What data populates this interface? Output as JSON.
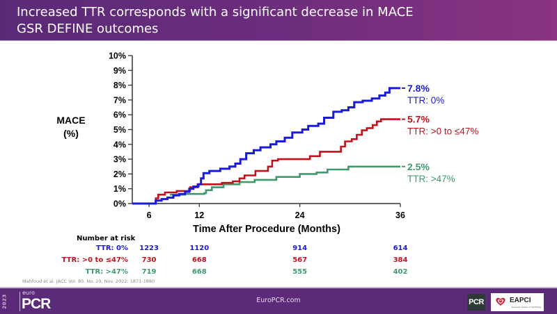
{
  "slide": {
    "title_line1": "Increased TTR corresponds with a significant decrease in MACE",
    "title_line2": "GSR DEFINE outcomes",
    "citation": "Mahfoud et al. JACC Vol. 80, No. 20, Nov. 2022: 1871-1880",
    "footer_site": "EuroPCR.com",
    "logo_year": "2023",
    "logo_euro": "euro",
    "logo_pcr": "PCR",
    "badge_pcr": "PCR",
    "badge_eapci": "EAPCI",
    "badge_eapci_sub": "European Society of Cardiology"
  },
  "colors": {
    "header_start": "#5a2a78",
    "header_end": "#8a3482",
    "blue": "#1a1adb",
    "red": "#c0121c",
    "green": "#3e9a6a"
  },
  "chart_data": {
    "type": "line",
    "subtype": "kaplan-meier-step",
    "title": "",
    "xlabel": "Time After Procedure (Months)",
    "ylabel_line1": "MACE",
    "ylabel_line2": "(%)",
    "xlim": [
      4,
      36
    ],
    "ylim": [
      0,
      10
    ],
    "x_ticks": [
      6,
      12,
      24,
      36
    ],
    "x_tick_labels": [
      "6",
      "12",
      "24",
      "36"
    ],
    "y_ticks": [
      0,
      1,
      2,
      3,
      4,
      5,
      6,
      7,
      8,
      9,
      10
    ],
    "y_tick_labels": [
      "0%",
      "1%",
      "2%",
      "3%",
      "4%",
      "5%",
      "6%",
      "7%",
      "8%",
      "9%",
      "10%"
    ],
    "grid": false,
    "legend_placement": "right-end-labels",
    "series": [
      {
        "name": "TTR: 0%",
        "color_key": "blue",
        "end_label": "7.8%",
        "final_value": 7.8,
        "points": [
          [
            4,
            0
          ],
          [
            6.6,
            0
          ],
          [
            6.8,
            0.2
          ],
          [
            7.5,
            0.3
          ],
          [
            8.2,
            0.4
          ],
          [
            8.9,
            0.55
          ],
          [
            9.6,
            0.65
          ],
          [
            10.3,
            0.8
          ],
          [
            10.8,
            1.0
          ],
          [
            11.3,
            1.15
          ],
          [
            11.9,
            1.3
          ],
          [
            12.2,
            1.7
          ],
          [
            12.5,
            2.05
          ],
          [
            13.2,
            2.2
          ],
          [
            14.5,
            2.35
          ],
          [
            15.6,
            2.5
          ],
          [
            16.3,
            2.7
          ],
          [
            16.9,
            3.0
          ],
          [
            17.6,
            3.4
          ],
          [
            18.5,
            3.6
          ],
          [
            19.3,
            3.8
          ],
          [
            20.5,
            4.0
          ],
          [
            21.2,
            4.2
          ],
          [
            22.2,
            4.45
          ],
          [
            23.1,
            4.8
          ],
          [
            24.3,
            5.0
          ],
          [
            25.0,
            5.25
          ],
          [
            26.2,
            5.4
          ],
          [
            26.9,
            5.8
          ],
          [
            28.0,
            6.2
          ],
          [
            29.0,
            6.3
          ],
          [
            29.8,
            6.5
          ],
          [
            30.5,
            6.85
          ],
          [
            31.5,
            6.95
          ],
          [
            32.6,
            7.1
          ],
          [
            33.5,
            7.3
          ],
          [
            34.2,
            7.5
          ],
          [
            34.7,
            7.8
          ],
          [
            36,
            7.8
          ]
        ]
      },
      {
        "name": "TTR: >0 to ≤47%",
        "color_key": "red",
        "end_label": "5.7%",
        "final_value": 5.7,
        "points": [
          [
            6.6,
            0
          ],
          [
            6.8,
            0.35
          ],
          [
            7.1,
            0.6
          ],
          [
            7.9,
            0.75
          ],
          [
            9.3,
            0.85
          ],
          [
            10.9,
            1.1
          ],
          [
            11.8,
            1.3
          ],
          [
            14.2,
            1.3
          ],
          [
            14.7,
            1.4
          ],
          [
            16.0,
            1.5
          ],
          [
            16.8,
            1.7
          ],
          [
            17.4,
            1.9
          ],
          [
            18.7,
            2.2
          ],
          [
            20.2,
            2.5
          ],
          [
            20.7,
            2.9
          ],
          [
            21.4,
            3.0
          ],
          [
            25.2,
            3.2
          ],
          [
            26.4,
            3.5
          ],
          [
            28.9,
            3.85
          ],
          [
            29.4,
            4.2
          ],
          [
            30.2,
            4.35
          ],
          [
            30.8,
            4.65
          ],
          [
            31.4,
            4.95
          ],
          [
            32.0,
            5.1
          ],
          [
            32.7,
            5.3
          ],
          [
            33.2,
            5.55
          ],
          [
            33.7,
            5.7
          ],
          [
            36,
            5.7
          ]
        ]
      },
      {
        "name": "TTR: >47%",
        "color_key": "green",
        "end_label": "2.5%",
        "final_value": 2.5,
        "points": [
          [
            8.5,
            0.6
          ],
          [
            10.3,
            0.65
          ],
          [
            12.6,
            0.7
          ],
          [
            12.8,
            0.9
          ],
          [
            13.5,
            1.1
          ],
          [
            14.9,
            1.3
          ],
          [
            16.8,
            1.45
          ],
          [
            18.6,
            1.6
          ],
          [
            21.2,
            1.8
          ],
          [
            24.0,
            2.0
          ],
          [
            26.0,
            2.1
          ],
          [
            27.3,
            2.3
          ],
          [
            29.8,
            2.5
          ],
          [
            36,
            2.5
          ]
        ]
      }
    ],
    "number_at_risk": {
      "title": "Number at risk",
      "timepoints": [
        6,
        12,
        24,
        36
      ],
      "rows": [
        {
          "label": "TTR: 0%",
          "color_key": "blue",
          "values": [
            "1223",
            "1120",
            "914",
            "614"
          ]
        },
        {
          "label": "TTR: >0 to ≤47%",
          "color_key": "red",
          "values": [
            "730",
            "668",
            "567",
            "384"
          ]
        },
        {
          "label": "TTR: >47%",
          "color_key": "green",
          "values": [
            "719",
            "668",
            "555",
            "402"
          ]
        }
      ]
    }
  }
}
